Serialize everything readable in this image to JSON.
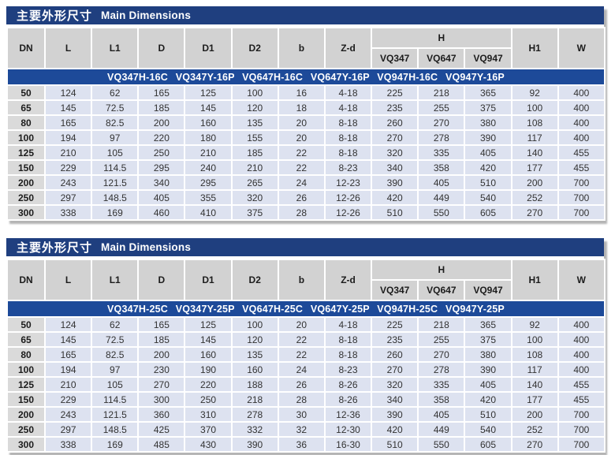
{
  "colors": {
    "title_bar": "#1f3f7f",
    "model_band": "#1d4a99",
    "header_cell": "#d2d2d2",
    "dn_cell": "#dadada",
    "data_cell": "#dde2f0",
    "shadow": "#b4b4b4",
    "text_dark": "#1c1c1c",
    "text_white": "#ffffff"
  },
  "tables": [
    {
      "title_zh": "主要外形尺寸",
      "title_en": "Main Dimensions",
      "columns": [
        "DN",
        "L",
        "L1",
        "D",
        "D1",
        "D2",
        "b",
        "Z-d"
      ],
      "h_group_label": "H",
      "h_subcolumns": [
        "VQ347",
        "VQ647",
        "VQ947"
      ],
      "tail_columns": [
        "H1",
        "W"
      ],
      "models": [
        "VQ347H-16C",
        "VQ347Y-16P",
        "VQ647H-16C",
        "VQ647Y-16P",
        "VQ947H-16C",
        "VQ947Y-16P"
      ],
      "rows": [
        [
          "50",
          "124",
          "62",
          "165",
          "125",
          "100",
          "16",
          "4-18",
          "225",
          "218",
          "365",
          "92",
          "400"
        ],
        [
          "65",
          "145",
          "72.5",
          "185",
          "145",
          "120",
          "18",
          "4-18",
          "235",
          "255",
          "375",
          "100",
          "400"
        ],
        [
          "80",
          "165",
          "82.5",
          "200",
          "160",
          "135",
          "20",
          "8-18",
          "260",
          "270",
          "380",
          "108",
          "400"
        ],
        [
          "100",
          "194",
          "97",
          "220",
          "180",
          "155",
          "20",
          "8-18",
          "270",
          "278",
          "390",
          "117",
          "400"
        ],
        [
          "125",
          "210",
          "105",
          "250",
          "210",
          "185",
          "22",
          "8-18",
          "320",
          "335",
          "405",
          "140",
          "455"
        ],
        [
          "150",
          "229",
          "114.5",
          "295",
          "240",
          "210",
          "22",
          "8-23",
          "340",
          "358",
          "420",
          "177",
          "455"
        ],
        [
          "200",
          "243",
          "121.5",
          "340",
          "295",
          "265",
          "24",
          "12-23",
          "390",
          "405",
          "510",
          "200",
          "700"
        ],
        [
          "250",
          "297",
          "148.5",
          "405",
          "355",
          "320",
          "26",
          "12-26",
          "420",
          "449",
          "540",
          "252",
          "700"
        ],
        [
          "300",
          "338",
          "169",
          "460",
          "410",
          "375",
          "28",
          "12-26",
          "510",
          "550",
          "605",
          "270",
          "700"
        ]
      ]
    },
    {
      "title_zh": "主要外形尺寸",
      "title_en": "Main Dimensions",
      "columns": [
        "DN",
        "L",
        "L1",
        "D",
        "D1",
        "D2",
        "b",
        "Z-d"
      ],
      "h_group_label": "H",
      "h_subcolumns": [
        "VQ347",
        "VQ647",
        "VQ947"
      ],
      "tail_columns": [
        "H1",
        "W"
      ],
      "models": [
        "VQ347H-25C",
        "VQ347Y-25P",
        "VQ647H-25C",
        "VQ647Y-25P",
        "VQ947H-25C",
        "VQ947Y-25P"
      ],
      "rows": [
        [
          "50",
          "124",
          "62",
          "165",
          "125",
          "100",
          "20",
          "4-18",
          "225",
          "218",
          "365",
          "92",
          "400"
        ],
        [
          "65",
          "145",
          "72.5",
          "185",
          "145",
          "120",
          "22",
          "8-18",
          "235",
          "255",
          "375",
          "100",
          "400"
        ],
        [
          "80",
          "165",
          "82.5",
          "200",
          "160",
          "135",
          "22",
          "8-18",
          "260",
          "270",
          "380",
          "108",
          "400"
        ],
        [
          "100",
          "194",
          "97",
          "230",
          "190",
          "160",
          "24",
          "8-23",
          "270",
          "278",
          "390",
          "117",
          "400"
        ],
        [
          "125",
          "210",
          "105",
          "270",
          "220",
          "188",
          "26",
          "8-26",
          "320",
          "335",
          "405",
          "140",
          "455"
        ],
        [
          "150",
          "229",
          "114.5",
          "300",
          "250",
          "218",
          "28",
          "8-26",
          "340",
          "358",
          "420",
          "177",
          "455"
        ],
        [
          "200",
          "243",
          "121.5",
          "360",
          "310",
          "278",
          "30",
          "12-36",
          "390",
          "405",
          "510",
          "200",
          "700"
        ],
        [
          "250",
          "297",
          "148.5",
          "425",
          "370",
          "332",
          "32",
          "12-30",
          "420",
          "449",
          "540",
          "252",
          "700"
        ],
        [
          "300",
          "338",
          "169",
          "485",
          "430",
          "390",
          "36",
          "16-30",
          "510",
          "550",
          "605",
          "270",
          "700"
        ]
      ]
    }
  ]
}
